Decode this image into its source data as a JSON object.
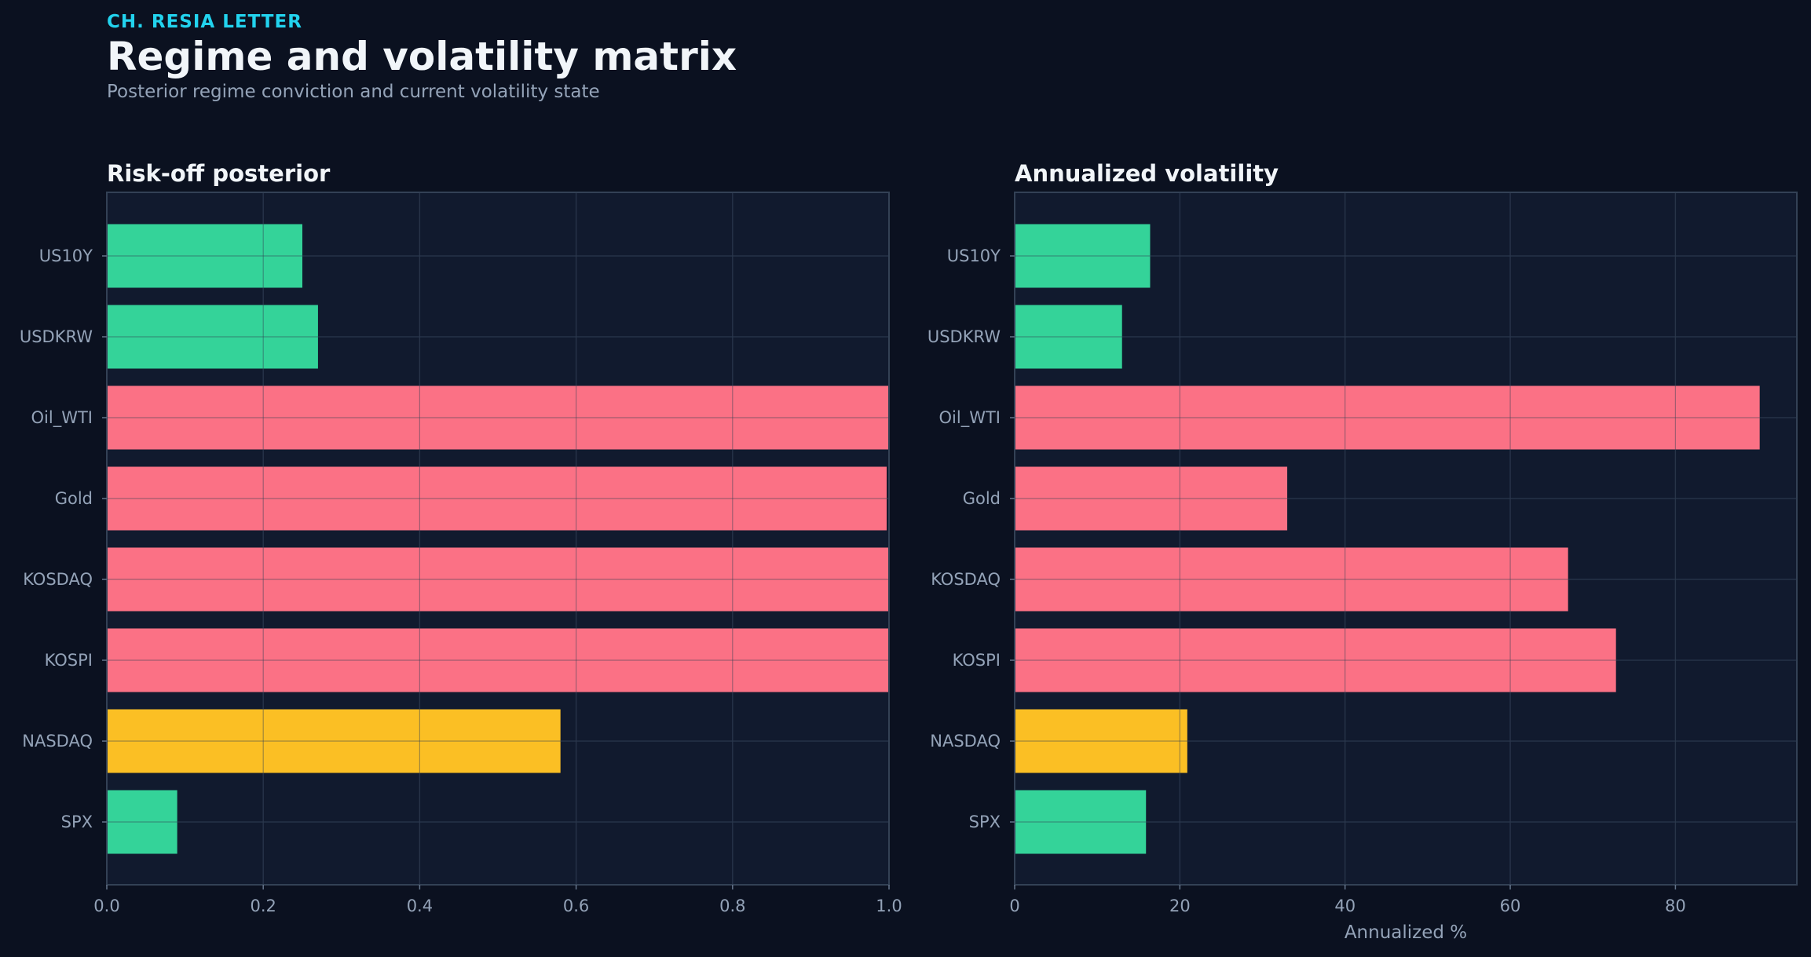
{
  "header": {
    "kicker": "CH. RESIA LETTER",
    "title": "Regime and volatility matrix",
    "subtitle": "Posterior regime conviction and current volatility state"
  },
  "colors": {
    "background": "#0b1120",
    "panel": "#111a2e",
    "risk_off": "#fb7185",
    "neutral": "#fbbf24",
    "risk_on": "#34d399",
    "text": "#f1f5f9",
    "muted": "#94a3b8"
  },
  "chart_data": [
    {
      "type": "bar",
      "orientation": "horizontal",
      "title": "Risk-off posterior",
      "categories": [
        "US10Y",
        "USDKRW",
        "Oil_WTI",
        "Gold",
        "KOSDAQ",
        "KOSPI",
        "NASDAQ",
        "SPX"
      ],
      "values": [
        0.25,
        0.27,
        1.0,
        0.997,
        1.0,
        1.0,
        0.58,
        0.09
      ],
      "bar_colors": [
        "risk_on",
        "risk_on",
        "risk_off",
        "risk_off",
        "risk_off",
        "risk_off",
        "neutral",
        "risk_on"
      ],
      "xlabel": "",
      "xlim": [
        0,
        1.0
      ],
      "xticks": [
        "0.0",
        "0.2",
        "0.4",
        "0.6",
        "0.8",
        "1.0"
      ],
      "grid": true
    },
    {
      "type": "bar",
      "orientation": "horizontal",
      "title": "Annualized volatility",
      "categories": [
        "US10Y",
        "USDKRW",
        "Oil_WTI",
        "Gold",
        "KOSDAQ",
        "KOSPI",
        "NASDAQ",
        "SPX"
      ],
      "values": [
        16.4,
        13.0,
        90.2,
        33.0,
        67.0,
        72.8,
        20.9,
        15.9
      ],
      "bar_colors": [
        "risk_on",
        "risk_on",
        "risk_off",
        "risk_off",
        "risk_off",
        "risk_off",
        "neutral",
        "risk_on"
      ],
      "xlabel": "Annualized %",
      "xlim": [
        0,
        94.7
      ],
      "xticks": [
        "0",
        "20",
        "40",
        "60",
        "80"
      ],
      "grid": true
    }
  ]
}
